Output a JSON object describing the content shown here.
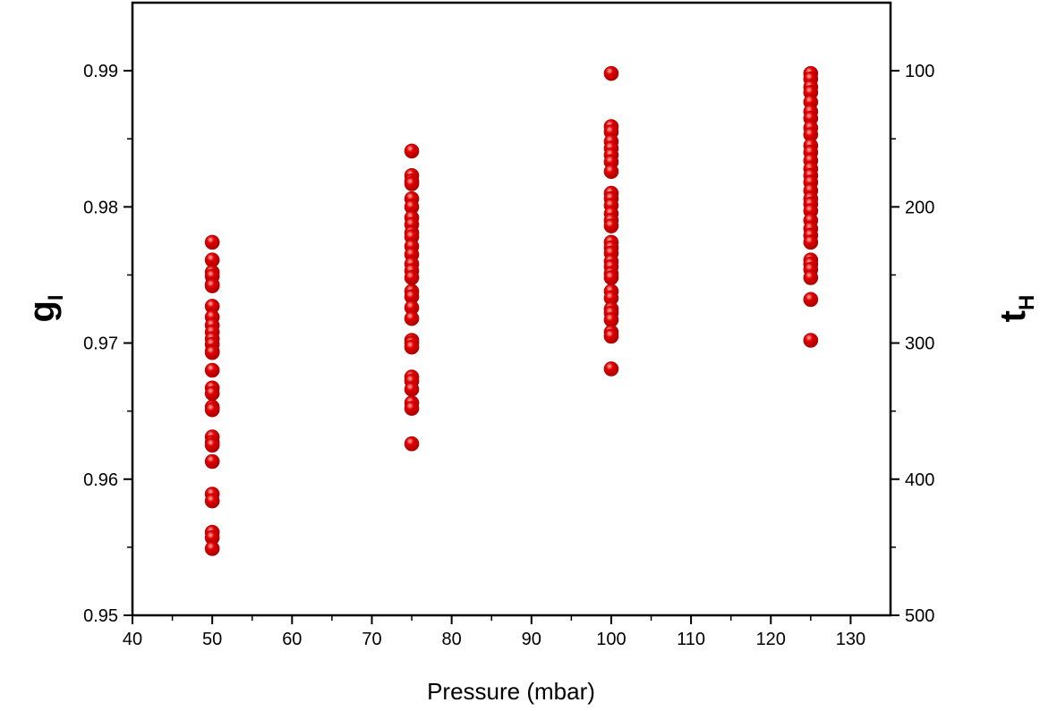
{
  "chart_data": {
    "type": "scatter",
    "xlabel": "Pressure (mbar)",
    "ylabel_left": {
      "main": "g",
      "sub": "I"
    },
    "ylabel_right": {
      "main": "t",
      "sub": "H"
    },
    "xlim": [
      40,
      135
    ],
    "ylim_left": [
      0.95,
      0.995
    ],
    "ylim_right_reversed": [
      500,
      50
    ],
    "x_ticks": [
      40,
      50,
      60,
      70,
      80,
      90,
      100,
      110,
      120,
      130
    ],
    "y_left_ticks": [
      0.95,
      0.96,
      0.97,
      0.98,
      0.99
    ],
    "y_left_tick_labels": [
      "0.95",
      "0.96",
      "0.97",
      "0.98",
      "0.99"
    ],
    "y_right_ticks": [
      500,
      400,
      300,
      200,
      100
    ],
    "y_right_tick_labels": [
      "500",
      "400",
      "300",
      "200",
      "100"
    ],
    "grid": false,
    "marker_color": "#e00000",
    "series": [
      {
        "points": [
          [
            50,
            0.9774
          ],
          [
            50,
            0.9761
          ],
          [
            50,
            0.9752
          ],
          [
            50,
            0.9749
          ],
          [
            50,
            0.9743
          ],
          [
            50,
            0.9742
          ],
          [
            50,
            0.9727
          ],
          [
            50,
            0.9719
          ],
          [
            50,
            0.9713
          ],
          [
            50,
            0.9708
          ],
          [
            50,
            0.9703
          ],
          [
            50,
            0.9699
          ],
          [
            50,
            0.9694
          ],
          [
            50,
            0.9693
          ],
          [
            50,
            0.968
          ],
          [
            50,
            0.9667
          ],
          [
            50,
            0.9663
          ],
          [
            50,
            0.9653
          ],
          [
            50,
            0.9651
          ],
          [
            50,
            0.9631
          ],
          [
            50,
            0.9627
          ],
          [
            50,
            0.9625
          ],
          [
            50,
            0.9613
          ],
          [
            50,
            0.9589
          ],
          [
            50,
            0.9584
          ],
          [
            50,
            0.9561
          ],
          [
            50,
            0.9557
          ],
          [
            50,
            0.9549
          ],
          [
            75,
            0.9841
          ],
          [
            75,
            0.9823
          ],
          [
            75,
            0.9819
          ],
          [
            75,
            0.9817
          ],
          [
            75,
            0.9806
          ],
          [
            75,
            0.98
          ],
          [
            75,
            0.9792
          ],
          [
            75,
            0.9787
          ],
          [
            75,
            0.9781
          ],
          [
            75,
            0.9778
          ],
          [
            75,
            0.9771
          ],
          [
            75,
            0.9765
          ],
          [
            75,
            0.9758
          ],
          [
            75,
            0.9753
          ],
          [
            75,
            0.9748
          ],
          [
            75,
            0.9738
          ],
          [
            75,
            0.9734
          ],
          [
            75,
            0.9726
          ],
          [
            75,
            0.9718
          ],
          [
            75,
            0.9702
          ],
          [
            75,
            0.97
          ],
          [
            75,
            0.9697
          ],
          [
            75,
            0.9675
          ],
          [
            75,
            0.9672
          ],
          [
            75,
            0.9666
          ],
          [
            75,
            0.9656
          ],
          [
            75,
            0.9652
          ],
          [
            75,
            0.9626
          ],
          [
            100,
            0.9898
          ],
          [
            100,
            0.9859
          ],
          [
            100,
            0.9855
          ],
          [
            100,
            0.9848
          ],
          [
            100,
            0.9843
          ],
          [
            100,
            0.9838
          ],
          [
            100,
            0.9833
          ],
          [
            100,
            0.9826
          ],
          [
            100,
            0.981
          ],
          [
            100,
            0.9806
          ],
          [
            100,
            0.9801
          ],
          [
            100,
            0.9795
          ],
          [
            100,
            0.979
          ],
          [
            100,
            0.9786
          ],
          [
            100,
            0.9774
          ],
          [
            100,
            0.977
          ],
          [
            100,
            0.9766
          ],
          [
            100,
            0.976
          ],
          [
            100,
            0.9756
          ],
          [
            100,
            0.9751
          ],
          [
            100,
            0.9748
          ],
          [
            100,
            0.9738
          ],
          [
            100,
            0.9733
          ],
          [
            100,
            0.9725
          ],
          [
            100,
            0.9722
          ],
          [
            100,
            0.9717
          ],
          [
            100,
            0.9708
          ],
          [
            100,
            0.9705
          ],
          [
            100,
            0.9681
          ],
          [
            125,
            0.9898
          ],
          [
            125,
            0.9894
          ],
          [
            125,
            0.9888
          ],
          [
            125,
            0.9884
          ],
          [
            125,
            0.9877
          ],
          [
            125,
            0.987
          ],
          [
            125,
            0.9865
          ],
          [
            125,
            0.9858
          ],
          [
            125,
            0.9853
          ],
          [
            125,
            0.9845
          ],
          [
            125,
            0.984
          ],
          [
            125,
            0.9834
          ],
          [
            125,
            0.9828
          ],
          [
            125,
            0.9823
          ],
          [
            125,
            0.9818
          ],
          [
            125,
            0.9812
          ],
          [
            125,
            0.9806
          ],
          [
            125,
            0.9802
          ],
          [
            125,
            0.9797
          ],
          [
            125,
            0.979
          ],
          [
            125,
            0.9784
          ],
          [
            125,
            0.9779
          ],
          [
            125,
            0.9774
          ],
          [
            125,
            0.9761
          ],
          [
            125,
            0.9758
          ],
          [
            125,
            0.9754
          ],
          [
            125,
            0.9748
          ],
          [
            125,
            0.9732
          ],
          [
            125,
            0.9702
          ]
        ]
      }
    ]
  }
}
